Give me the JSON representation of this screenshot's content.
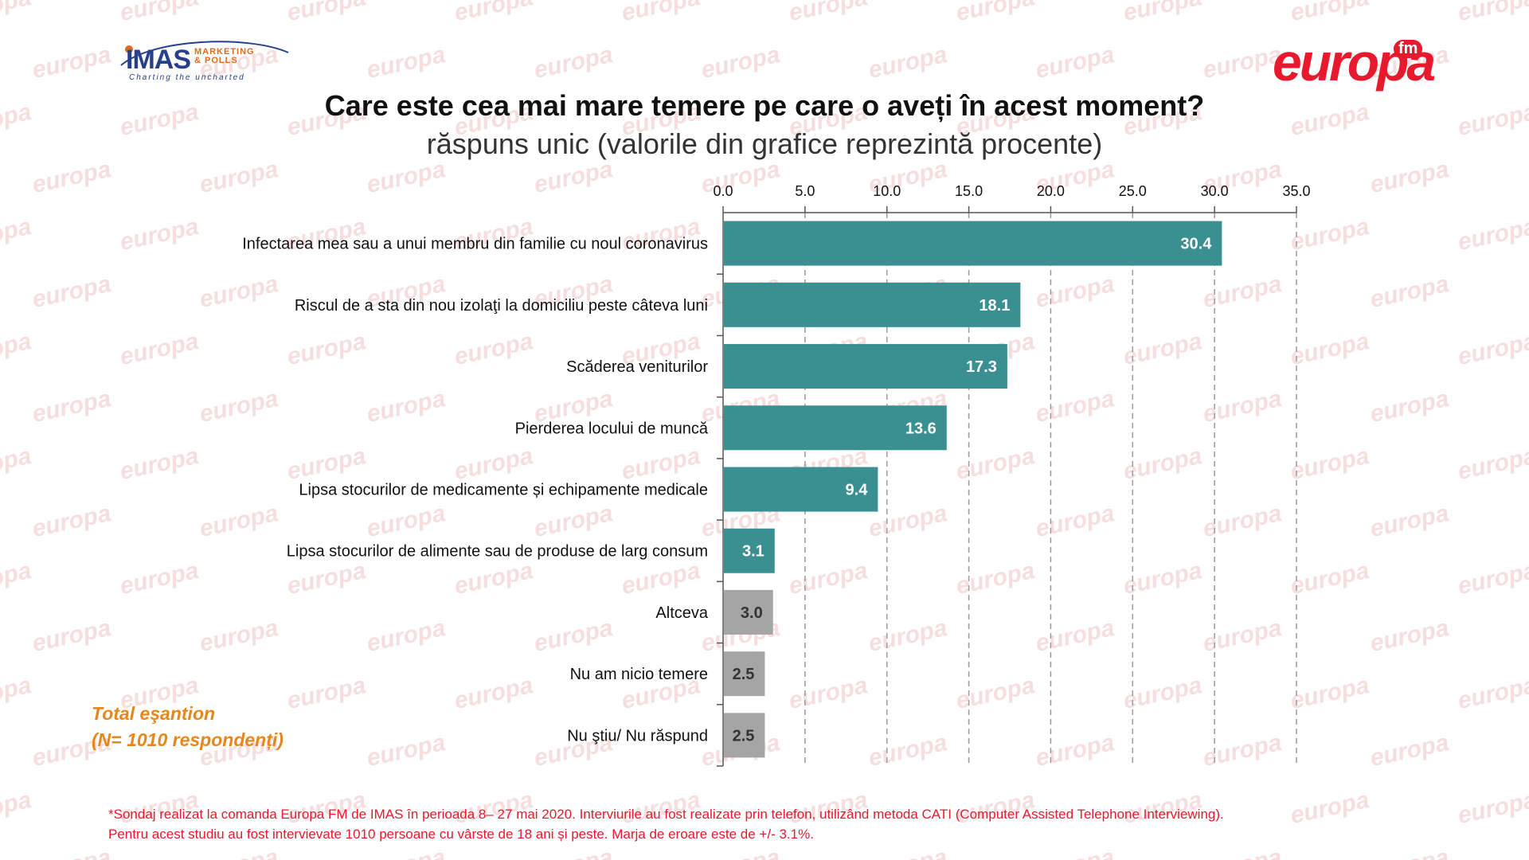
{
  "header": {
    "title": "Care este cea mai mare temere pe care o aveți în acest moment?",
    "subtitle": "răspuns unic (valorile din grafice reprezintă procente)"
  },
  "logos": {
    "left": {
      "main": "IMAS",
      "sub1": "MARKETING",
      "sub2": "& POLLS",
      "tagline": "Charting the uncharted"
    },
    "right": {
      "main": "europa",
      "badge": "fm"
    },
    "watermark": "europa"
  },
  "chart_data": {
    "type": "bar",
    "orientation": "horizontal",
    "categories": [
      "Infectarea mea sau a unui membru din familie cu noul coronavirus",
      "Riscul de a sta din nou izolaţi la domiciliu peste câteva luni",
      "Scăderea veniturilor",
      "Pierderea locului de muncă",
      "Lipsa stocurilor de medicamente și echipamente medicale",
      "Lipsa stocurilor de alimente sau de produse de larg consum",
      "Altceva",
      "Nu am nicio temere",
      "Nu ştiu/ Nu răspund"
    ],
    "values": [
      30.4,
      18.1,
      17.3,
      13.6,
      9.4,
      3.1,
      3.0,
      2.5,
      2.5
    ],
    "bar_colors": [
      "#3a8f91",
      "#3a8f91",
      "#3a8f91",
      "#3a8f91",
      "#3a8f91",
      "#3a8f91",
      "#a5a5a5",
      "#a5a5a5",
      "#a5a5a5"
    ],
    "label_colors": [
      "#ffffff",
      "#ffffff",
      "#ffffff",
      "#ffffff",
      "#ffffff",
      "#ffffff",
      "#333333",
      "#333333",
      "#333333"
    ],
    "xticks": [
      "0.0",
      "5.0",
      "10.0",
      "15.0",
      "20.0",
      "25.0",
      "30.0",
      "35.0"
    ],
    "xlim": [
      0,
      35
    ],
    "axis_position": "top",
    "grid": "vertical dashed"
  },
  "notes": {
    "sample_line1": "Total eşantion",
    "sample_line2": "(N= 1010 respondenți)",
    "footnote_line1": "*Sondaj realizat la comanda Europa FM de IMAS în perioada  8– 27 mai 2020. Interviurile au fost realizate prin telefon, utilizând metoda CATI (Computer Assisted Telephone Interviewing).",
    "footnote_line2": "Pentru acest studiu au fost intervievate 1010 persoane cu vârste de 18 ani și peste. Marja de eroare este de +/- 3.1%."
  },
  "colors": {
    "accent_teal": "#3a8f91",
    "neutral_gray": "#a5a5a5",
    "brand_red": "#e8192c",
    "note_orange": "#e8861c"
  }
}
